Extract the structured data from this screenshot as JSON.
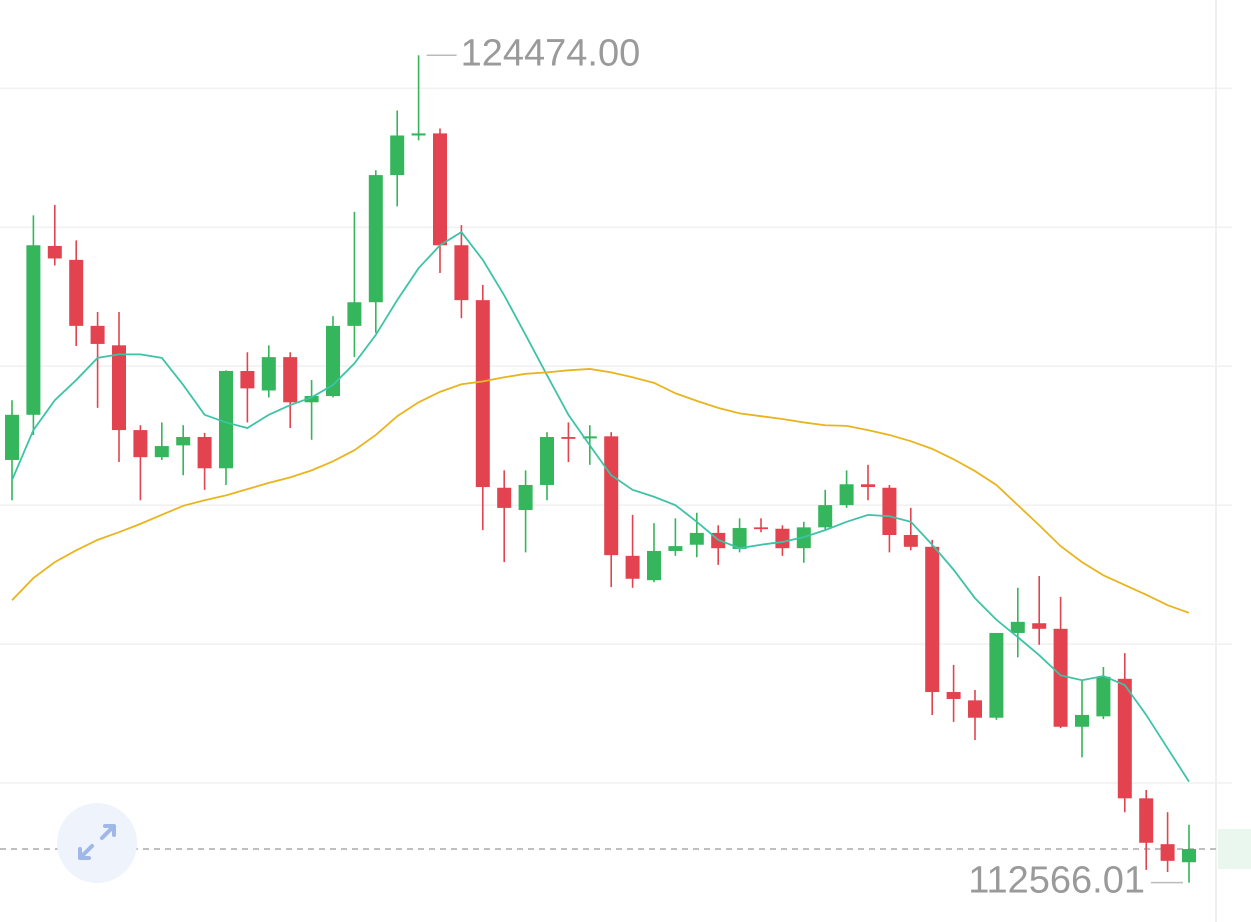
{
  "chart_data": {
    "type": "candlestick",
    "up_color": "#35b55c",
    "down_color": "#e2434f",
    "ylim": [
      112000,
      125270
    ],
    "yticks": [
      114000,
      116000,
      118000,
      120000,
      122000,
      124000
    ],
    "grid": true,
    "open": [
      118650,
      119300,
      121730,
      121530,
      120580,
      120300,
      119080,
      118690,
      118860,
      118980,
      118530,
      119930,
      119650,
      120130,
      119480,
      119570,
      120580,
      120920,
      122750,
      123320,
      123350,
      121740,
      120950,
      118250,
      117930,
      118290,
      118980,
      118960,
      118990,
      117270,
      116920,
      117340,
      117430,
      117600,
      117370,
      117680,
      117660,
      117380,
      117680,
      118000,
      118300,
      118250,
      117570,
      117400,
      115310,
      115190,
      114940,
      116160,
      116300,
      116220,
      114810,
      114960,
      115500,
      113780,
      113120,
      112860
    ],
    "high": [
      119510,
      122170,
      122320,
      121810,
      120780,
      120780,
      119150,
      119190,
      119150,
      119040,
      119940,
      120200,
      120300,
      120200,
      119800,
      120720,
      122220,
      122820,
      123680,
      124474,
      123420,
      122030,
      121170,
      118500,
      118500,
      119050,
      119190,
      119150,
      119050,
      117860,
      117740,
      117810,
      117890,
      117710,
      117810,
      117810,
      117710,
      117760,
      118220,
      118500,
      118580,
      118290,
      117960,
      117500,
      115700,
      115340,
      116160,
      116810,
      116980,
      116680,
      115480,
      115670,
      115870,
      113900,
      113580,
      113400
    ],
    "low": [
      118070,
      119010,
      121450,
      120290,
      119400,
      118620,
      118070,
      118650,
      118430,
      118220,
      118290,
      119190,
      119550,
      119110,
      118940,
      119550,
      120130,
      120480,
      122300,
      123250,
      121340,
      120690,
      117640,
      117180,
      117320,
      118070,
      118620,
      118580,
      116820,
      116810,
      116890,
      117270,
      117250,
      117140,
      117320,
      117610,
      117270,
      117170,
      117640,
      117960,
      118070,
      117320,
      117350,
      114980,
      114880,
      114620,
      114910,
      115810,
      115990,
      114790,
      114370,
      114920,
      113580,
      112750,
      112720,
      112566.01
    ],
    "close": [
      119300,
      121740,
      121550,
      120580,
      120320,
      119080,
      118690,
      118850,
      118980,
      118530,
      119930,
      119680,
      120130,
      119480,
      119570,
      120580,
      120920,
      122750,
      123320,
      123350,
      121740,
      120950,
      118260,
      117960,
      118290,
      118980,
      118960,
      118990,
      117280,
      116940,
      117340,
      117410,
      117600,
      117380,
      117670,
      117660,
      117380,
      117680,
      118000,
      118300,
      118260,
      117570,
      117400,
      115310,
      115210,
      114940,
      116160,
      116320,
      116220,
      114810,
      114980,
      115530,
      113780,
      113140,
      112880,
      113050
    ],
    "lines": [
      {
        "color": "#3ec3a6",
        "values": [
          118360,
          119080,
          119510,
          119800,
          120120,
          120170,
          120170,
          120120,
          119730,
          119300,
          119190,
          119110,
          119300,
          119440,
          119550,
          119730,
          120040,
          120450,
          120950,
          121410,
          121740,
          121930,
          121530,
          121020,
          120450,
          119870,
          119300,
          118860,
          118430,
          118220,
          118120,
          118000,
          117760,
          117500,
          117380,
          117430,
          117470,
          117540,
          117640,
          117760,
          117860,
          117840,
          117760,
          117430,
          117070,
          116660,
          116350,
          116100,
          115840,
          115550,
          115480,
          115540,
          115410,
          114980,
          114500,
          114020
        ]
      },
      {
        "color": "#e9b41e",
        "values": [
          116630,
          116950,
          117180,
          117350,
          117500,
          117610,
          117730,
          117860,
          117990,
          118070,
          118140,
          118230,
          118320,
          118400,
          118500,
          118630,
          118790,
          119010,
          119280,
          119480,
          119630,
          119740,
          119780,
          119840,
          119890,
          119910,
          119940,
          119960,
          119910,
          119840,
          119760,
          119610,
          119500,
          119400,
          119320,
          119280,
          119240,
          119190,
          119150,
          119140,
          119080,
          119010,
          118920,
          118810,
          118660,
          118490,
          118290,
          118000,
          117710,
          117410,
          117180,
          116990,
          116850,
          116710,
          116560,
          116450
        ]
      }
    ],
    "annotations": [
      {
        "value": 124474,
        "label": "124474.00"
      },
      {
        "value": 112566.01,
        "label": "112566.01"
      }
    ]
  }
}
